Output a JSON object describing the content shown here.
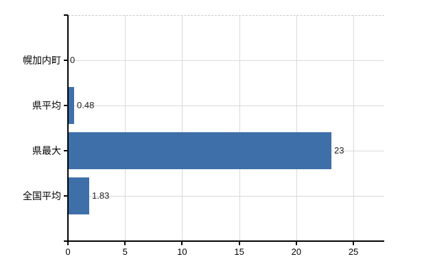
{
  "chart_data": {
    "type": "bar",
    "orientation": "horizontal",
    "title": "",
    "xlabel": "",
    "ylabel": "",
    "categories": [
      "幌加内町",
      "県平均",
      "県最大",
      "全国平均"
    ],
    "values": [
      0,
      0.48,
      23,
      1.83
    ],
    "value_labels": [
      "0",
      "0.48",
      "23",
      "1.83"
    ],
    "x_ticks": [
      0,
      5,
      10,
      15,
      20,
      25
    ],
    "x_tick_labels": [
      "0",
      "5",
      "10",
      "15",
      "20",
      "25"
    ],
    "xlim": [
      0,
      27.7
    ],
    "grid": true,
    "legend": false,
    "colors": {
      "bar": "#3e6fa9",
      "gridline": "#d9d9d9",
      "frame_dashed": "#c9c9c9",
      "axis": "#000000",
      "text": "#000000",
      "background": "#ffffff"
    }
  }
}
